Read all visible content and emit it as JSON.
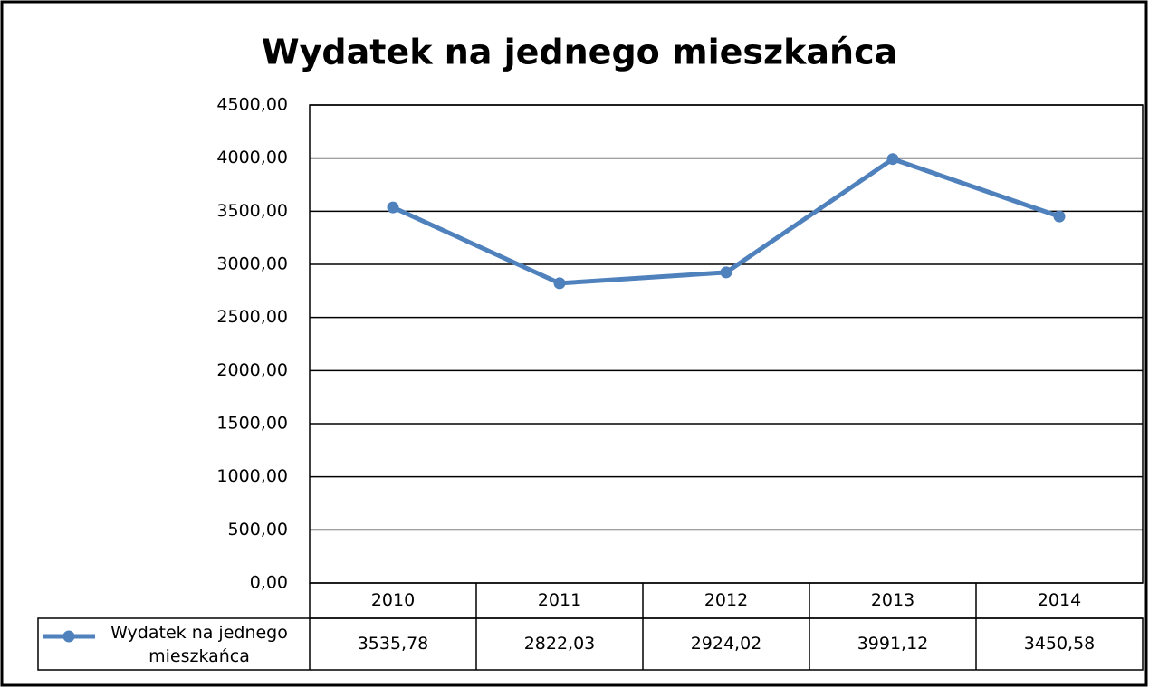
{
  "chart_data": {
    "type": "line",
    "title": "Wydatek na jednego mieszkańca",
    "categories": [
      "2010",
      "2011",
      "2012",
      "2013",
      "2014"
    ],
    "series": [
      {
        "name": "Wydatek na jednego mieszkańca",
        "color": "#4f81bd",
        "values": [
          3535.78,
          2822.03,
          2924.02,
          3991.12,
          3450.58
        ],
        "value_labels": [
          "3535,78",
          "2822,03",
          "2924,02",
          "3991,12",
          "3450,58"
        ]
      }
    ],
    "ylim": [
      0,
      4500
    ],
    "yticks": [
      {
        "value": 0,
        "label": "0,00"
      },
      {
        "value": 500,
        "label": "500,00"
      },
      {
        "value": 1000,
        "label": "1000,00"
      },
      {
        "value": 1500,
        "label": "1500,00"
      },
      {
        "value": 2000,
        "label": "2000,00"
      },
      {
        "value": 2500,
        "label": "2500,00"
      },
      {
        "value": 3000,
        "label": "3000,00"
      },
      {
        "value": 3500,
        "label": "3500,00"
      },
      {
        "value": 4000,
        "label": "4000,00"
      },
      {
        "value": 4500,
        "label": "4500,00"
      }
    ],
    "grid": true
  }
}
